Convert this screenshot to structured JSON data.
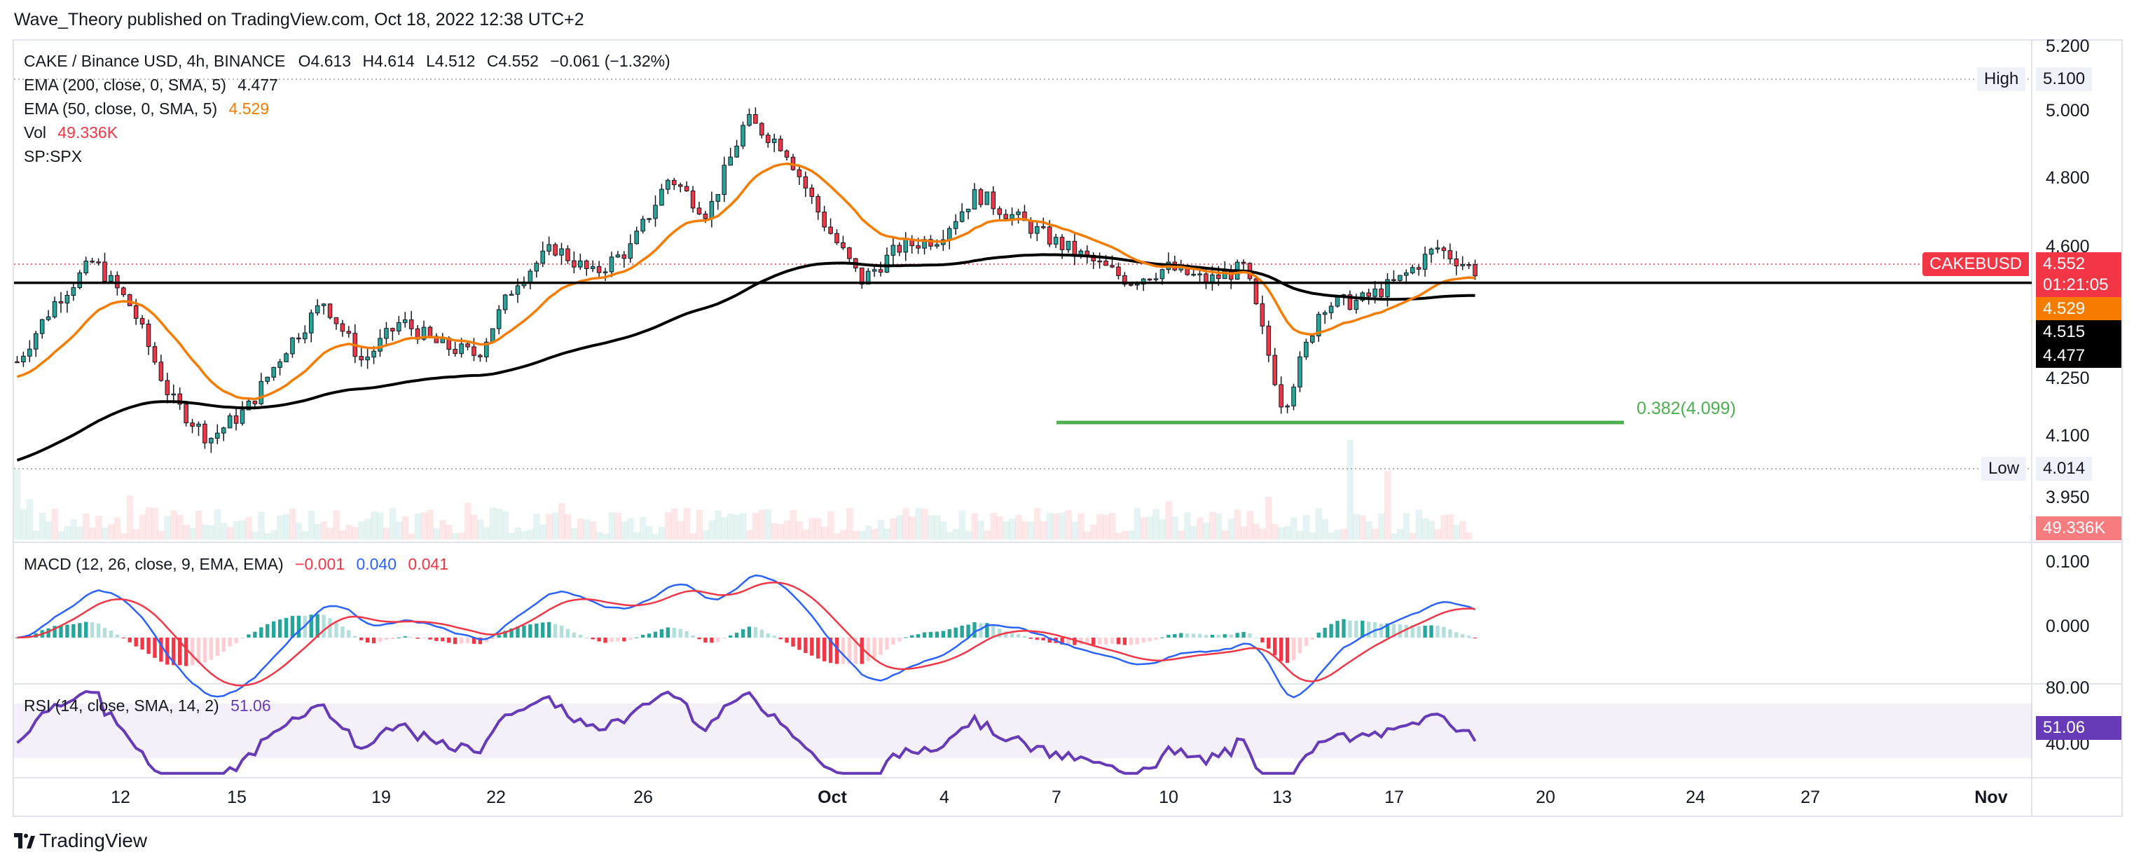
{
  "publisher": "Wave_Theory published on TradingView.com, Oct 18, 2022 12:38 UTC+2",
  "brand": {
    "name": "TradingView"
  },
  "colors": {
    "up": "#26a69a",
    "down": "#f23645",
    "ema200": "#000000",
    "ema50": "#f57c00",
    "fib": "#4caf50",
    "macd": "#2962ff",
    "signal": "#f23645",
    "rsi": "#673ab7"
  },
  "legend": {
    "symbol": "CAKE / Binance USD, 4h, BINANCE",
    "open": "O4.613",
    "high": "H4.614",
    "low": "L4.512",
    "close": "C4.552",
    "change": "−0.061 (−1.32%)",
    "ema200_label": "EMA (200, close, 0, SMA, 5)",
    "ema200_value": "4.477",
    "ema50_label": "EMA (50, close, 0, SMA, 5)",
    "ema50_value": "4.529",
    "vol_label": "Vol",
    "vol_value": "49.336K",
    "spx_label": "SP:SPX",
    "macd_label": "MACD (12, 26, close, 9, EMA, EMA)",
    "macd_hist": "−0.001",
    "macd_line": "0.040",
    "macd_signal": "0.041",
    "rsi_label": "RSI (14, close, SMA, 14, 2)",
    "rsi_value": "51.06"
  },
  "price_axis": {
    "ticks": [
      "5.200",
      "5.000",
      "4.800",
      "4.600",
      "4.250",
      "4.100",
      "3.950"
    ],
    "high_label": "High",
    "high_value": "5.100",
    "low_label": "Low",
    "low_value": "4.014",
    "symbol_tag": "CAKEBUSD",
    "last_price": "4.552",
    "countdown": "01:21:05",
    "ema50_tag": "4.529",
    "hline_tag": "4.515",
    "ema200_tag": "4.477",
    "vol_tag": "49.336K"
  },
  "macd_axis": {
    "ticks": [
      "0.100",
      "0.000"
    ]
  },
  "rsi_axis": {
    "ticks": [
      "80.00",
      "40.00"
    ],
    "value_tag": "51.06"
  },
  "fib": {
    "label": "0.382(4.099)",
    "level": 4.099
  },
  "hline": {
    "level": 4.515
  },
  "time_axis": {
    "ticks": [
      {
        "label": "12",
        "bold": false
      },
      {
        "label": "15",
        "bold": false
      },
      {
        "label": "19",
        "bold": false
      },
      {
        "label": "22",
        "bold": false
      },
      {
        "label": "26",
        "bold": false
      },
      {
        "label": "Oct",
        "bold": true
      },
      {
        "label": "4",
        "bold": false
      },
      {
        "label": "7",
        "bold": false
      },
      {
        "label": "10",
        "bold": false
      },
      {
        "label": "13",
        "bold": false
      },
      {
        "label": "17",
        "bold": false
      },
      {
        "label": "20",
        "bold": false
      },
      {
        "label": "24",
        "bold": false
      },
      {
        "label": "27",
        "bold": false
      },
      {
        "label": "Nov",
        "bold": true
      }
    ]
  },
  "chart_data": {
    "type": "candlestick",
    "symbol": "CAKE / Binance USD",
    "interval": "4h",
    "price_range": [
      3.88,
      5.24
    ],
    "price_path": [
      {
        "x": "Sep 10",
        "y": 4.28
      },
      {
        "x": "Sep 11",
        "y": 4.46
      },
      {
        "x": "Sep 12",
        "y": 4.58
      },
      {
        "x": "Sep 13",
        "y": 4.44
      },
      {
        "x": "Sep 14",
        "y": 4.17
      },
      {
        "x": "Sep 15",
        "y": 4.05
      },
      {
        "x": "Sep 16",
        "y": 4.14
      },
      {
        "x": "Sep 17",
        "y": 4.32
      },
      {
        "x": "Sep 18",
        "y": 4.46
      },
      {
        "x": "Sep 19",
        "y": 4.28
      },
      {
        "x": "Sep 20",
        "y": 4.4
      },
      {
        "x": "Sep 21",
        "y": 4.33
      },
      {
        "x": "Sep 22",
        "y": 4.3
      },
      {
        "x": "Sep 23",
        "y": 4.52
      },
      {
        "x": "Sep 24",
        "y": 4.62
      },
      {
        "x": "Sep 25",
        "y": 4.54
      },
      {
        "x": "Sep 26",
        "y": 4.62
      },
      {
        "x": "Sep 27",
        "y": 4.83
      },
      {
        "x": "Sep 28",
        "y": 4.72
      },
      {
        "x": "Sep 29",
        "y": 5.0
      },
      {
        "x": "Sep 30",
        "y": 4.92
      },
      {
        "x": "Oct 1",
        "y": 4.7
      },
      {
        "x": "Oct 2",
        "y": 4.52
      },
      {
        "x": "Oct 3",
        "y": 4.62
      },
      {
        "x": "Oct 4",
        "y": 4.65
      },
      {
        "x": "Oct 5",
        "y": 4.78
      },
      {
        "x": "Oct 6",
        "y": 4.71
      },
      {
        "x": "Oct 7",
        "y": 4.64
      },
      {
        "x": "Oct 8",
        "y": 4.58
      },
      {
        "x": "Oct 9",
        "y": 4.52
      },
      {
        "x": "Oct 10",
        "y": 4.56
      },
      {
        "x": "Oct 11",
        "y": 4.52
      },
      {
        "x": "Oct 12",
        "y": 4.56
      },
      {
        "x": "Oct 13",
        "y": 4.14
      },
      {
        "x": "Oct 14",
        "y": 4.45
      },
      {
        "x": "Oct 15",
        "y": 4.46
      },
      {
        "x": "Oct 16",
        "y": 4.52
      },
      {
        "x": "Oct 17",
        "y": 4.62
      },
      {
        "x": "Oct 18",
        "y": 4.552
      }
    ],
    "ema50_value": 4.529,
    "ema200_value": 4.477,
    "volume_last": "49.336K",
    "macd": {
      "macd": 0.04,
      "signal": 0.041,
      "histogram": -0.001,
      "range": [
        -0.06,
        0.12
      ]
    },
    "rsi": {
      "value": 51.06,
      "band": [
        40,
        80
      ],
      "range": [
        30,
        85
      ]
    },
    "xlabel": "",
    "ylabel": ""
  }
}
